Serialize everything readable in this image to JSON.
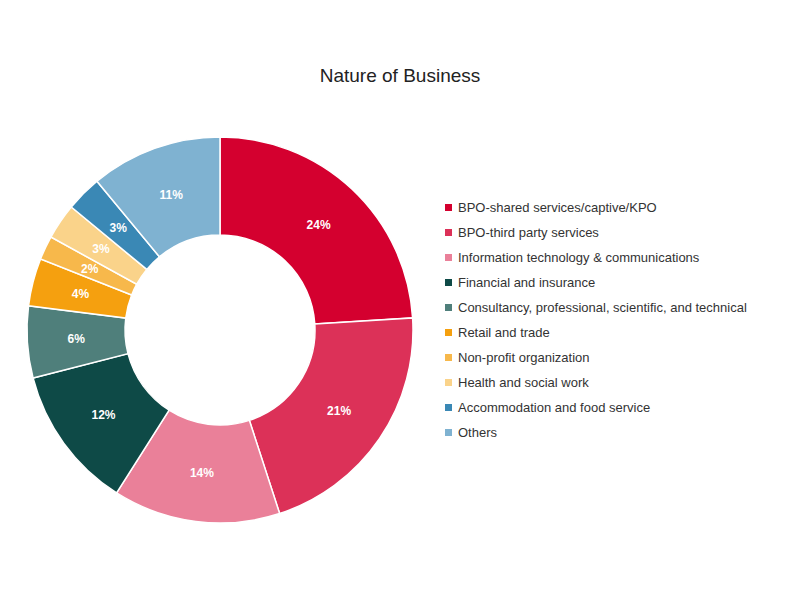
{
  "chart_data": {
    "type": "pie",
    "title": "Nature of Business",
    "donut": true,
    "categories": [
      "BPO-shared services/captive/KPO",
      "BPO-third party services",
      "Information technology & communications",
      "Financial and insurance",
      "Consultancy, professional, scientific, and technical",
      "Retail and trade",
      "Non-profit organization",
      "Health and social work",
      "Accommodation and food service",
      "Others"
    ],
    "values": [
      24,
      21,
      14,
      12,
      6,
      4,
      2,
      3,
      3,
      11
    ],
    "value_labels": [
      "24%",
      "21%",
      "14%",
      "12%",
      "6%",
      "4%",
      "2%",
      "3%",
      "3%",
      "11%"
    ],
    "colors": [
      "#d4002f",
      "#dc3158",
      "#ea8099",
      "#0e4a47",
      "#4f7f7b",
      "#f5a00f",
      "#f7b84b",
      "#fad38a",
      "#3a88b5",
      "#7fb2d1"
    ],
    "data_labels": true,
    "legend": "right"
  }
}
